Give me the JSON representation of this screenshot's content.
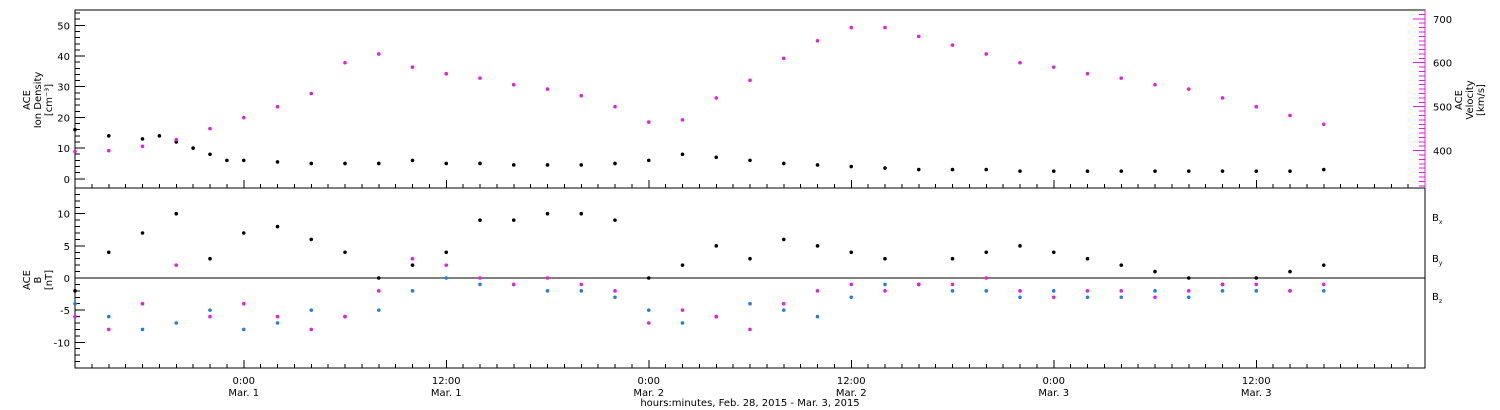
{
  "xlabel": "hours:minutes, Feb. 28, 2015 - Mar. 3, 2015",
  "x_ticks": [
    {
      "t": 24,
      "time": "0:00",
      "date": "Mar. 1"
    },
    {
      "t": 36,
      "time": "12:00",
      "date": "Mar. 1"
    },
    {
      "t": 48,
      "time": "0:00",
      "date": "Mar. 2"
    },
    {
      "t": 60,
      "time": "12:00",
      "date": "Mar. 2"
    },
    {
      "t": 72,
      "time": "0:00",
      "date": "Mar. 3"
    },
    {
      "t": 84,
      "time": "12:00",
      "date": "Mar. 3"
    }
  ],
  "colors": {
    "black": "#000000",
    "magenta": "#e020e0",
    "blue": "#2080e0"
  },
  "chart_data": [
    {
      "type": "scatter",
      "panel": "top",
      "ylabel_left": [
        "ACE",
        "Ion Density",
        "[cm⁻³]"
      ],
      "ylabel_right": [
        "ACE",
        "Velocity",
        "[km/s]"
      ],
      "ylim_left": [
        -3,
        55
      ],
      "ylim_right": [
        315,
        720
      ],
      "yticks_left": [
        "0",
        "10",
        "20",
        "30",
        "40",
        "50"
      ],
      "yticks_right": [
        "400",
        "500",
        "600",
        "700"
      ],
      "xlim_hours": [
        14,
        94
      ],
      "series": [
        {
          "name": "Density",
          "color": "#000000",
          "axis": "left",
          "x": [
            14,
            16,
            18,
            19,
            20,
            21,
            22,
            23,
            24,
            26,
            28,
            30,
            32,
            34,
            36,
            38,
            40,
            42,
            44,
            46,
            48,
            50,
            52,
            54,
            56,
            58,
            60,
            62,
            64,
            66,
            68,
            70,
            72,
            74,
            76,
            78,
            80,
            82,
            84,
            86,
            88
          ],
          "y": [
            16,
            14,
            13,
            14,
            12,
            10,
            8,
            6,
            6,
            5.5,
            5,
            5,
            5,
            6,
            5,
            5,
            4.5,
            4.5,
            4.5,
            5,
            6,
            8,
            7,
            6,
            5,
            4.5,
            4,
            3.5,
            3,
            3,
            3,
            2.5,
            2.5,
            2.5,
            2.5,
            2.5,
            2.5,
            2.5,
            2.5,
            2.5,
            3
          ]
        },
        {
          "name": "Velocity",
          "color": "#e020e0",
          "axis": "right",
          "x": [
            14,
            16,
            18,
            20,
            22,
            24,
            26,
            28,
            30,
            32,
            34,
            36,
            38,
            40,
            42,
            44,
            46,
            48,
            50,
            52,
            54,
            56,
            58,
            60,
            62,
            64,
            66,
            68,
            70,
            72,
            74,
            76,
            78,
            80,
            82,
            84,
            86,
            88
          ],
          "y": [
            398,
            400,
            410,
            425,
            450,
            475,
            500,
            530,
            600,
            620,
            590,
            575,
            565,
            550,
            540,
            525,
            500,
            465,
            470,
            520,
            560,
            610,
            650,
            680,
            680,
            660,
            640,
            620,
            600,
            590,
            575,
            565,
            550,
            540,
            520,
            500,
            480,
            460
          ]
        }
      ]
    },
    {
      "type": "scatter",
      "panel": "bottom",
      "ylabel_left": [
        "ACE",
        "B",
        "[nT]"
      ],
      "ylim": [
        -14,
        14
      ],
      "yticks": [
        "-10",
        "-5",
        "0",
        "5",
        "10"
      ],
      "xlim_hours": [
        14,
        94
      ],
      "legend": [
        "Bx",
        "By",
        "Bz"
      ],
      "series": [
        {
          "name": "Bx",
          "color": "#000000",
          "x": [
            14,
            16,
            18,
            20,
            22,
            24,
            26,
            28,
            30,
            32,
            34,
            36,
            38,
            40,
            42,
            44,
            46,
            48,
            50,
            52,
            54,
            56,
            58,
            60,
            62,
            64,
            66,
            68,
            70,
            72,
            74,
            76,
            78,
            80,
            82,
            84,
            86,
            88
          ],
          "y": [
            -2,
            4,
            7,
            10,
            3,
            7,
            8,
            6,
            4,
            0,
            2,
            4,
            9,
            9,
            10,
            10,
            9,
            0,
            2,
            5,
            3,
            6,
            5,
            4,
            3,
            -1,
            3,
            4,
            5,
            4,
            3,
            2,
            1,
            0,
            -1,
            0,
            1,
            2
          ]
        },
        {
          "name": "By",
          "color": "#2080e0",
          "x": [
            14,
            16,
            18,
            20,
            22,
            24,
            26,
            28,
            30,
            32,
            34,
            36,
            38,
            40,
            42,
            44,
            46,
            48,
            50,
            52,
            54,
            56,
            58,
            60,
            62,
            64,
            66,
            68,
            70,
            72,
            74,
            76,
            78,
            80,
            82,
            84,
            86,
            88
          ],
          "y": [
            -4,
            -6,
            -8,
            -7,
            -5,
            -8,
            -7,
            -5,
            -6,
            -5,
            -2,
            0,
            -1,
            -1,
            -2,
            -2,
            -3,
            -5,
            -7,
            -6,
            -4,
            -5,
            -6,
            -3,
            -1,
            -1,
            -2,
            -2,
            -3,
            -2,
            -3,
            -3,
            -2,
            -3,
            -2,
            -2,
            -2,
            -2
          ]
        },
        {
          "name": "Bz",
          "color": "#e020e0",
          "x": [
            14,
            16,
            18,
            20,
            22,
            24,
            26,
            28,
            30,
            32,
            34,
            36,
            38,
            40,
            42,
            44,
            46,
            48,
            50,
            52,
            54,
            56,
            58,
            60,
            62,
            64,
            66,
            68,
            70,
            72,
            74,
            76,
            78,
            80,
            82,
            84,
            86,
            88
          ],
          "y": [
            -6,
            -8,
            -4,
            2,
            -6,
            -4,
            -6,
            -8,
            -6,
            -2,
            3,
            2,
            0,
            -1,
            0,
            -1,
            -2,
            -7,
            -5,
            -6,
            -8,
            -4,
            -2,
            -1,
            -2,
            -1,
            -1,
            0,
            -2,
            -3,
            -2,
            -2,
            -3,
            -2,
            -1,
            -1,
            -2,
            -1
          ]
        }
      ]
    }
  ]
}
